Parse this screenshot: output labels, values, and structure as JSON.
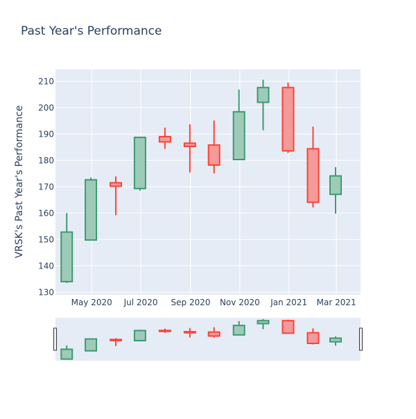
{
  "chart_data": {
    "type": "candlestick",
    "title": "Past Year's Performance",
    "xlabel": "",
    "ylabel": "VRSK's Past Year's Performance",
    "ylim": [
      129,
      214.5
    ],
    "y_ticks": [
      130,
      140,
      150,
      160,
      170,
      180,
      190,
      200,
      210
    ],
    "x_range": [
      "2020-03-17",
      "2021-03-31"
    ],
    "x_ticks": [
      {
        "date": "2020-05-01",
        "label": "May 2020"
      },
      {
        "date": "2020-07-01",
        "label": "Jul 2020"
      },
      {
        "date": "2020-09-01",
        "label": "Sep 2020"
      },
      {
        "date": "2020-11-01",
        "label": "Nov 2020"
      },
      {
        "date": "2021-01-01",
        "label": "Jan 2021"
      },
      {
        "date": "2021-03-01",
        "label": "Mar 2021"
      }
    ],
    "candles": [
      {
        "date": "2020-03-31",
        "open": 134.0,
        "high": 160.0,
        "low": 133.5,
        "close": 152.8
      },
      {
        "date": "2020-04-30",
        "open": 149.8,
        "high": 173.5,
        "low": 149.8,
        "close": 172.6
      },
      {
        "date": "2020-05-31",
        "open": 171.5,
        "high": 173.9,
        "low": 159.2,
        "close": 170.2
      },
      {
        "date": "2020-06-30",
        "open": 169.3,
        "high": 189.0,
        "low": 168.5,
        "close": 188.7
      },
      {
        "date": "2020-07-31",
        "open": 189.0,
        "high": 192.4,
        "low": 184.4,
        "close": 187.0
      },
      {
        "date": "2020-08-31",
        "open": 186.5,
        "high": 193.7,
        "low": 175.4,
        "close": 185.3
      },
      {
        "date": "2020-09-30",
        "open": 185.8,
        "high": 195.1,
        "low": 175.1,
        "close": 178.2
      },
      {
        "date": "2020-10-31",
        "open": 180.3,
        "high": 206.8,
        "low": 180.3,
        "close": 198.4
      },
      {
        "date": "2020-11-30",
        "open": 202.0,
        "high": 210.6,
        "low": 191.4,
        "close": 207.6
      },
      {
        "date": "2020-12-31",
        "open": 207.6,
        "high": 209.5,
        "low": 182.8,
        "close": 183.6
      },
      {
        "date": "2021-01-31",
        "open": 184.4,
        "high": 192.8,
        "low": 162.1,
        "close": 164.1
      },
      {
        "date": "2021-02-28",
        "open": 167.1,
        "high": 177.4,
        "low": 159.8,
        "close": 174.1
      }
    ],
    "increasing_color": "#3d9970",
    "increasing_fill": "#9ecbb8",
    "decreasing_color": "#ff4136",
    "decreasing_fill": "#f49a9a",
    "plot_background": "#e5ecf6",
    "grid": true,
    "rangeslider": true
  }
}
